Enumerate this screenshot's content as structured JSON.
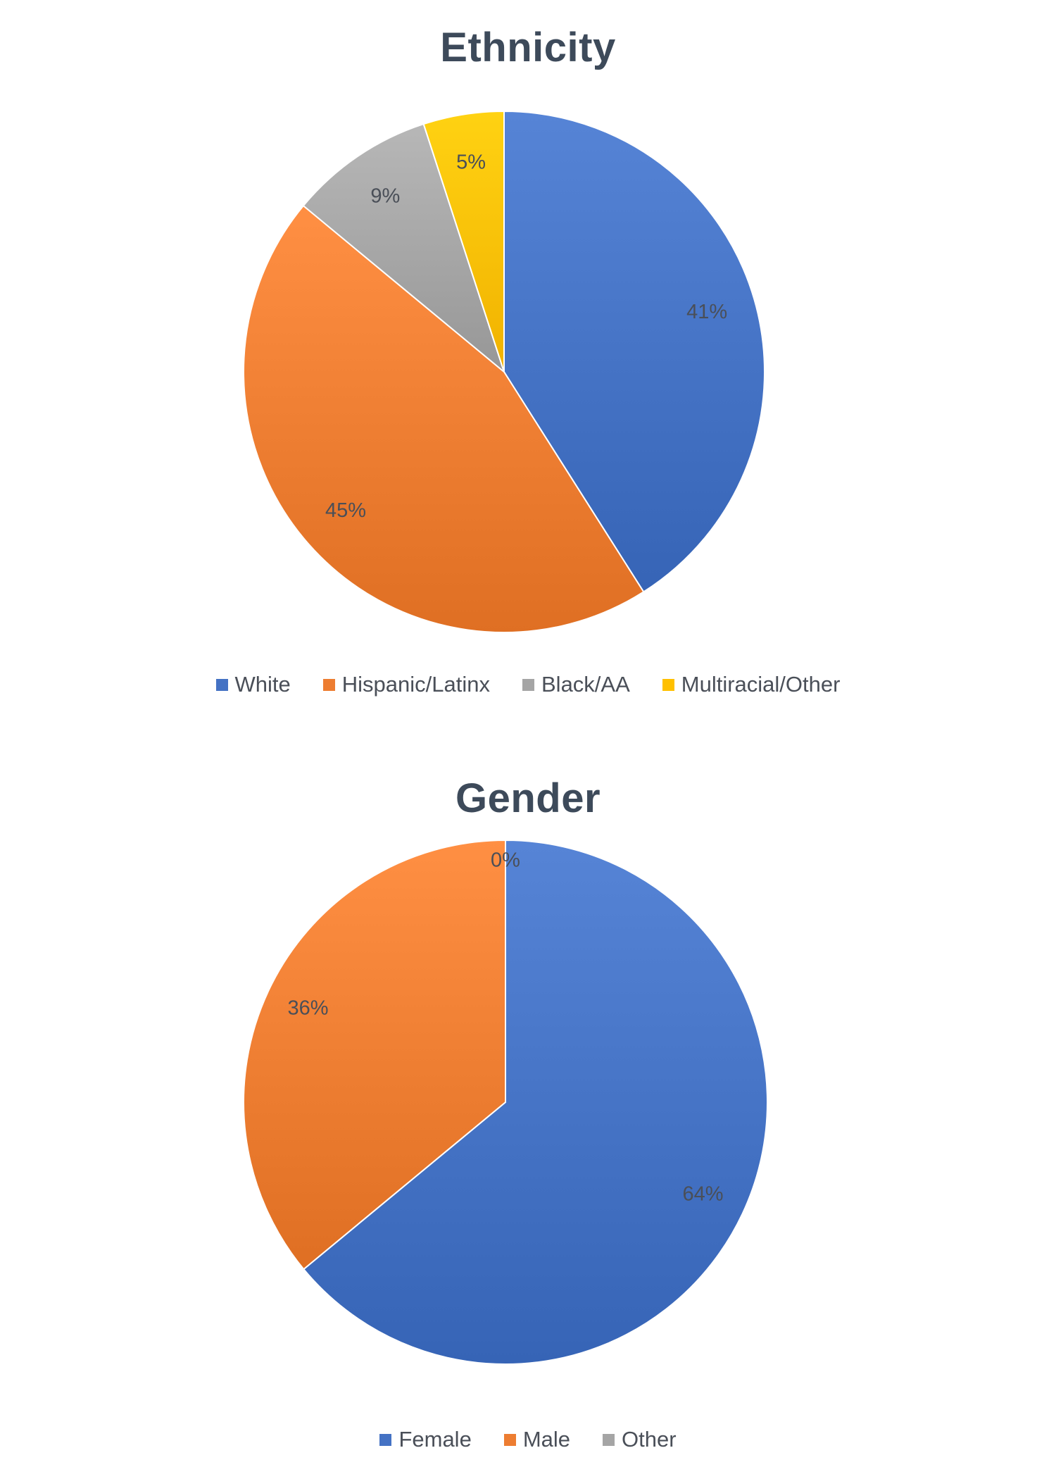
{
  "chart_data": [
    {
      "type": "pie",
      "title": "Ethnicity",
      "categories": [
        "White",
        "Hispanic/Latinx",
        "Black/AA",
        "Multiracial/Other"
      ],
      "values": [
        41,
        45,
        9,
        5
      ],
      "data_labels": [
        "41%",
        "45%",
        "9%",
        "5%"
      ],
      "colors": [
        "#4472c4",
        "#ed7d31",
        "#a5a5a5",
        "#ffc000"
      ],
      "legend_position": "bottom"
    },
    {
      "type": "pie",
      "title": "Gender",
      "categories": [
        "Female",
        "Male",
        "Other"
      ],
      "values": [
        64,
        36,
        0
      ],
      "data_labels": [
        "64%",
        "36%",
        "0%"
      ],
      "colors": [
        "#4472c4",
        "#ed7d31",
        "#a5a5a5"
      ],
      "legend_position": "bottom"
    }
  ]
}
